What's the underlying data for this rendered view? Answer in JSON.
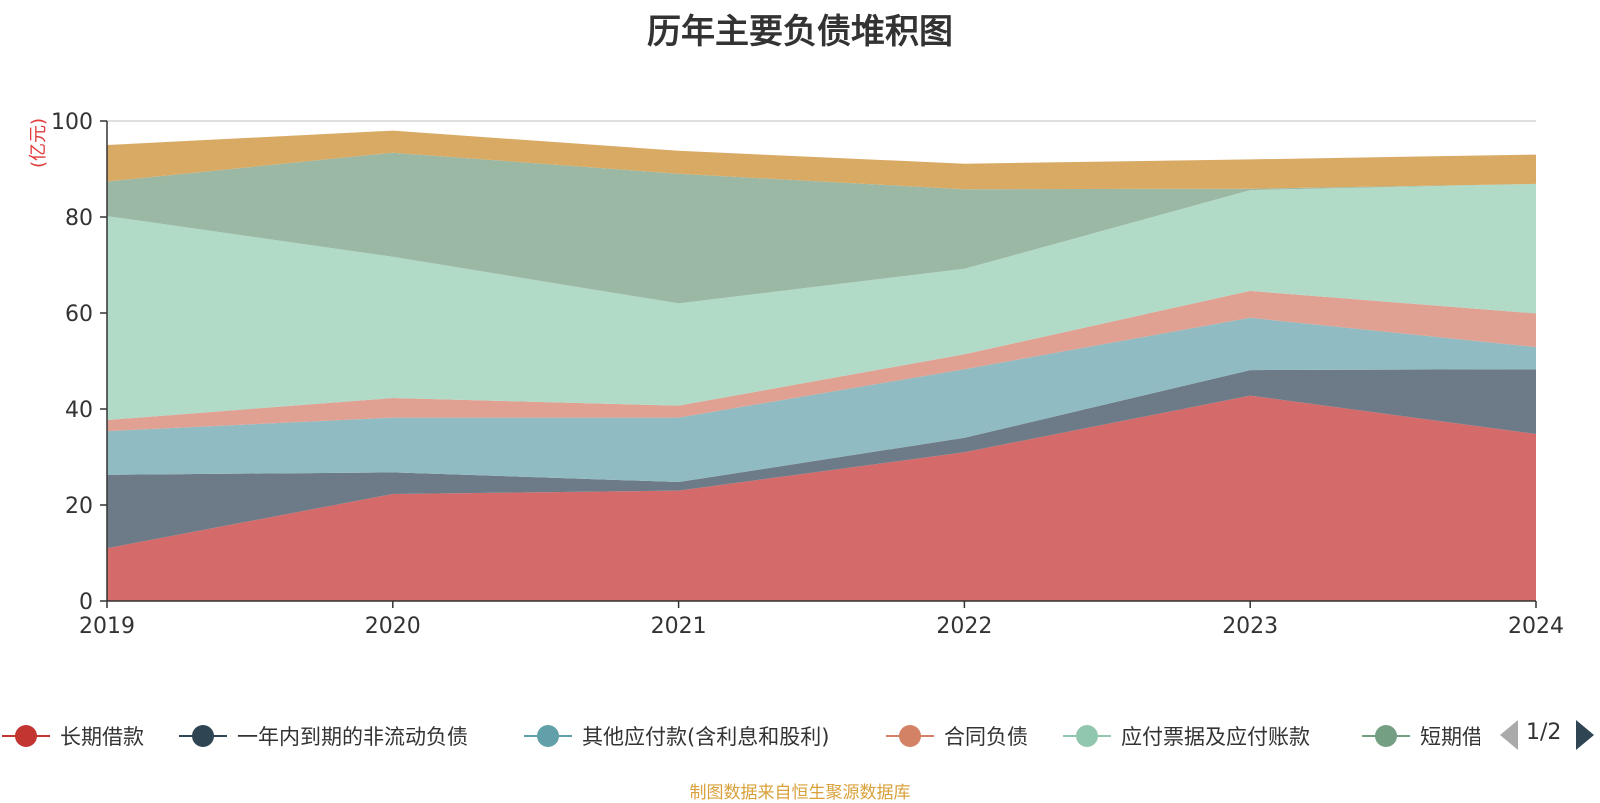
{
  "chart_data": {
    "type": "area",
    "title": "历年主要负债堆积图",
    "ylabel": "(亿元)",
    "xlabel": "",
    "x": [
      "2019",
      "2020",
      "2021",
      "2022",
      "2023",
      "2024"
    ],
    "ylim": [
      0,
      100
    ],
    "yticks": [
      "0",
      "20",
      "40",
      "60",
      "80",
      "100"
    ],
    "grid": true,
    "stacked": true,
    "series": [
      {
        "name": "长期借款",
        "color": "#d46a6a",
        "values": [
          11.0,
          22.3,
          23.0,
          31.0,
          42.8,
          34.8
        ]
      },
      {
        "name": "一年内到期的非流动负债",
        "color": "#6c7b87",
        "values": [
          15.3,
          4.5,
          1.8,
          3.0,
          5.3,
          13.5
        ]
      },
      {
        "name": "其他应付款(含利息和股利)",
        "color": "#91bbc2",
        "values": [
          9.1,
          11.4,
          13.4,
          14.3,
          10.9,
          4.6
        ]
      },
      {
        "name": "合同负债",
        "color": "#e0a192",
        "values": [
          2.3,
          4.1,
          2.5,
          3.1,
          5.6,
          7.0
        ]
      },
      {
        "name": "应付票据及应付账款",
        "color": "#b1dac7",
        "values": [
          42.5,
          29.4,
          21.3,
          17.8,
          21.0,
          27.0
        ]
      },
      {
        "name": "短期借款",
        "color": "#9bb8a4",
        "values": [
          7.2,
          21.7,
          27.0,
          16.6,
          0.3,
          0.0
        ]
      },
      {
        "name": "",
        "color": "#d9aa64",
        "values": [
          7.6,
          4.6,
          4.8,
          5.3,
          6.1,
          6.1
        ]
      }
    ]
  },
  "legend": {
    "items": [
      {
        "label": "长期借款",
        "color": "#c23531"
      },
      {
        "label": "一年内到期的非流动负债",
        "color": "#2f4554"
      },
      {
        "label": "其他应付款(含利息和股利)",
        "color": "#61a0a8"
      },
      {
        "label": "合同负债",
        "color": "#d48265"
      },
      {
        "label": "应付票据及应付账款",
        "color": "#91c7ae"
      },
      {
        "label": "短期借",
        "color": "#749f83"
      }
    ],
    "page": "1/2",
    "prev_icon": "triangle-left-icon",
    "next_icon": "triangle-right-icon"
  },
  "footer": "制图数据来自恒生聚源数据库"
}
